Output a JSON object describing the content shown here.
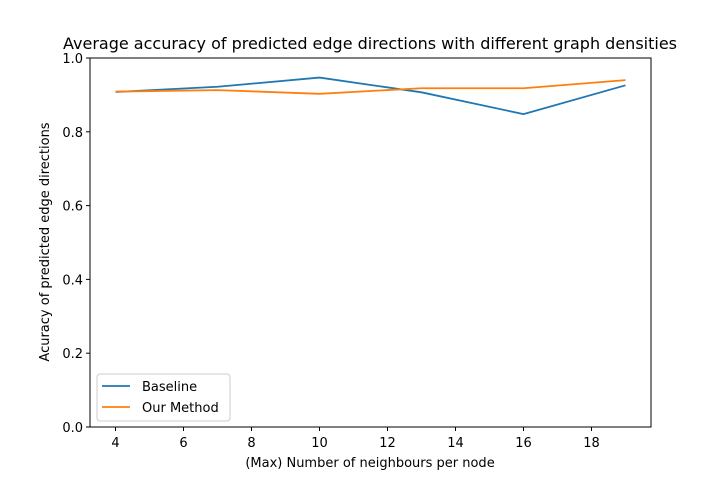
{
  "chart_data": {
    "type": "line",
    "title": "Average accuracy of predicted edge directions with different graph densities",
    "xlabel": "(Max) Number of neighbours per node",
    "ylabel": "Acuracy of predicted edge directions",
    "xlim": [
      3.25,
      19.75
    ],
    "ylim": [
      0.0,
      1.0
    ],
    "xticks": [
      4,
      6,
      8,
      10,
      12,
      14,
      16,
      18
    ],
    "yticks": [
      0.0,
      0.2,
      0.4,
      0.6,
      0.8,
      1.0
    ],
    "xtick_labels": [
      "4",
      "6",
      "8",
      "10",
      "12",
      "14",
      "16",
      "18"
    ],
    "ytick_labels": [
      "0.0",
      "0.2",
      "0.4",
      "0.6",
      "0.8",
      "1.0"
    ],
    "grid": false,
    "legend_position": "lower-left",
    "series": [
      {
        "name": "Baseline",
        "color": "#1f77b4",
        "x": [
          4,
          7,
          10,
          13,
          16,
          19
        ],
        "y": [
          0.908,
          0.922,
          0.947,
          0.907,
          0.848,
          0.926
        ]
      },
      {
        "name": "Our Method",
        "color": "#ff7f0e",
        "x": [
          4,
          7,
          10,
          13,
          16,
          19
        ],
        "y": [
          0.909,
          0.913,
          0.903,
          0.918,
          0.918,
          0.94
        ]
      }
    ]
  }
}
